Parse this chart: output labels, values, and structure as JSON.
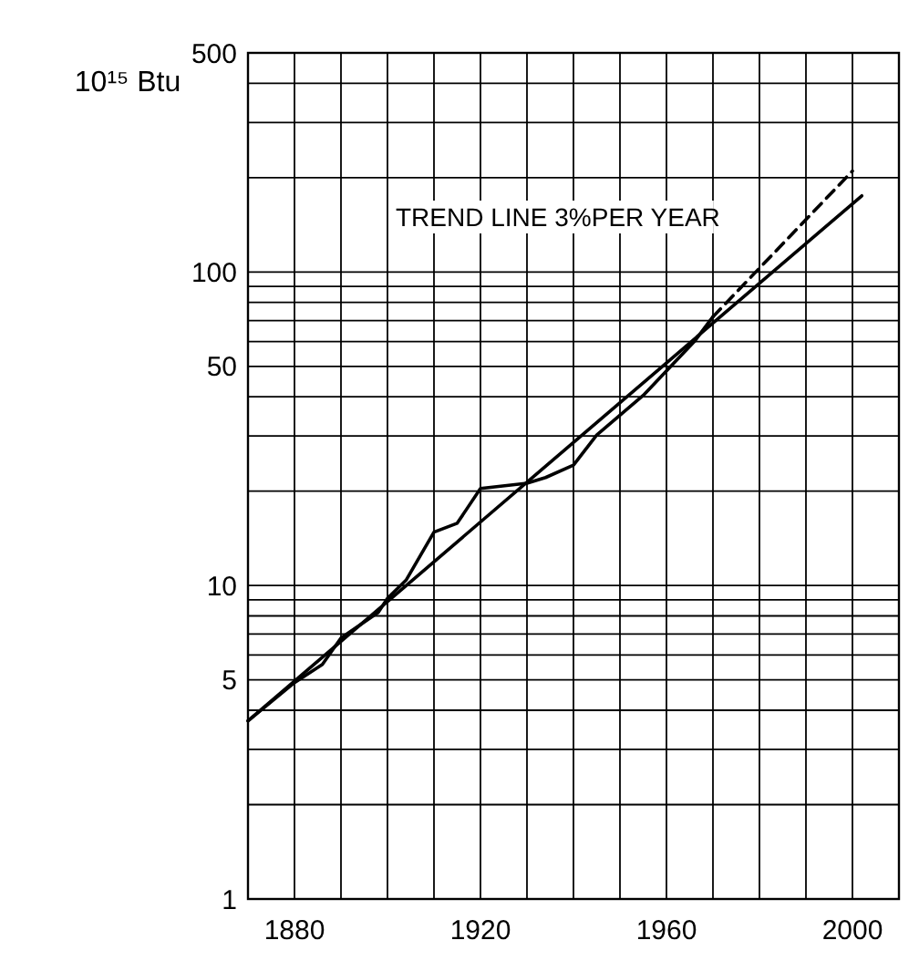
{
  "chart_data": {
    "type": "line",
    "ylabel": "10¹⁵ Btu",
    "annotations": [
      "TREND LINE 3%PER YEAR"
    ],
    "log": true,
    "grid": true,
    "marker": "none",
    "xlim": [
      1870,
      2010
    ],
    "xticks": [
      {
        "value": 1870,
        "label": null
      },
      1880,
      {
        "value": 1890,
        "label": null
      },
      {
        "value": 1900,
        "label": null
      },
      {
        "value": 1910,
        "label": null
      },
      1920,
      {
        "value": 1930,
        "label": null
      },
      {
        "value": 1940,
        "label": null
      },
      {
        "value": 1950,
        "label": null
      },
      1960,
      {
        "value": 1970,
        "label": null
      },
      {
        "value": 1980,
        "label": null
      },
      {
        "value": 1990,
        "label": null
      },
      2000,
      {
        "value": 2010,
        "label": null
      }
    ],
    "ylim": [
      1,
      500
    ],
    "yticks": [
      1,
      {
        "value": 2,
        "label": null
      },
      {
        "value": 3,
        "label": null
      },
      {
        "value": 4,
        "label": null
      },
      5,
      {
        "value": 6,
        "label": null
      },
      {
        "value": 7,
        "label": null
      },
      {
        "value": 8,
        "label": null
      },
      {
        "value": 9,
        "label": null
      },
      10,
      {
        "value": 20,
        "label": null
      },
      {
        "value": 30,
        "label": null
      },
      {
        "value": 40,
        "label": null
      },
      50,
      {
        "value": 60,
        "label": null
      },
      {
        "value": 70,
        "label": null
      },
      {
        "value": 80,
        "label": null
      },
      {
        "value": 90,
        "label": null
      },
      100,
      {
        "value": 200,
        "label": null
      },
      {
        "value": 300,
        "label": null
      },
      {
        "value": 400,
        "label": null
      },
      500
    ],
    "series": [
      {
        "color": "#000000",
        "line_style": "solid",
        "x": [
          1870,
          1880,
          1886,
          1890,
          1898,
          1900,
          1904,
          1910,
          1915,
          1920,
          1930,
          1934,
          1940,
          1945,
          1955,
          1966,
          1970
        ],
        "values": [
          3.7,
          4.9,
          5.6,
          6.8,
          8.2,
          9.1,
          10.4,
          14.8,
          15.8,
          20.4,
          21.2,
          22.1,
          24.2,
          30.2,
          40.4,
          60,
          72
        ]
      },
      {
        "color": "#000000",
        "line_style": "solid",
        "x": [
          1870,
          2002
        ],
        "values": [
          3.7,
          175
        ]
      },
      {
        "color": "#000000",
        "line_style": "dashed",
        "x": [
          1970,
          2000
        ],
        "values": [
          72,
          210
        ]
      }
    ]
  }
}
